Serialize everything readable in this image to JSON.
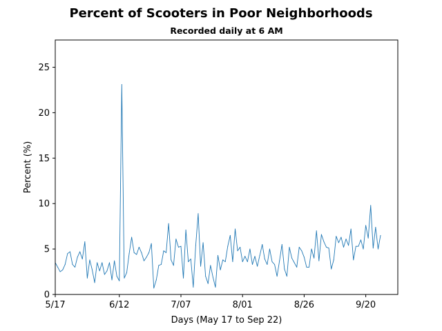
{
  "chart_data": {
    "type": "line",
    "title": "Percent of Scooters in Poor Neighborhoods",
    "subtitle": "Recorded daily at 6 AM",
    "xlabel": "Days (May 17 to Sep 22)",
    "ylabel": "Percent (%)",
    "xticks": [
      {
        "day": 0,
        "label": "5/17"
      },
      {
        "day": 26,
        "label": "6/12"
      },
      {
        "day": 51,
        "label": "7/07"
      },
      {
        "day": 76,
        "label": "8/01"
      },
      {
        "day": 101,
        "label": "8/26"
      },
      {
        "day": 126,
        "label": "9/20"
      }
    ],
    "yticks": [
      0,
      5,
      10,
      15,
      20,
      25
    ],
    "xlim": [
      0,
      139
    ],
    "ylim": [
      0,
      28
    ],
    "grid": false,
    "line_color": "#1f77b4",
    "series": [
      {
        "values": [
          3.5,
          3.0,
          2.5,
          2.7,
          3.3,
          4.5,
          4.7,
          3.3,
          3.0,
          4.1,
          4.7,
          3.9,
          5.8,
          1.8,
          3.8,
          2.7,
          1.3,
          3.5,
          2.6,
          3.5,
          2.2,
          2.6,
          3.5,
          1.6,
          3.7,
          2.0,
          1.5,
          23.1,
          1.8,
          2.4,
          4.5,
          6.3,
          4.6,
          4.4,
          5.2,
          4.6,
          3.7,
          4.1,
          4.6,
          5.6,
          0.7,
          1.6,
          3.2,
          3.3,
          4.8,
          4.6,
          7.8,
          3.8,
          3.2,
          6.1,
          5.2,
          5.3,
          1.8,
          7.1,
          3.6,
          3.9,
          0.8,
          5.4,
          8.9,
          3.1,
          5.7,
          2.0,
          1.2,
          3.2,
          1.9,
          0.8,
          4.3,
          2.7,
          3.8,
          3.6,
          5.3,
          6.5,
          3.6,
          7.2,
          4.8,
          5.2,
          3.6,
          4.2,
          3.6,
          5.0,
          3.3,
          4.2,
          3.1,
          4.3,
          5.5,
          3.9,
          3.3,
          5.0,
          3.6,
          3.3,
          2.0,
          3.7,
          5.5,
          2.8,
          2.0,
          5.2,
          4.0,
          3.5,
          3.0,
          5.2,
          4.8,
          4.1,
          3.0,
          3.0,
          5.0,
          4.0,
          7.0,
          3.7,
          6.6,
          5.8,
          5.2,
          5.1,
          2.8,
          3.8,
          6.4,
          5.7,
          6.3,
          5.2,
          6.1,
          5.4,
          7.2,
          3.8,
          5.3,
          5.3,
          6.0,
          5.0,
          7.6,
          6.2,
          9.8,
          5.1,
          7.4,
          5.0,
          6.5
        ]
      }
    ]
  }
}
